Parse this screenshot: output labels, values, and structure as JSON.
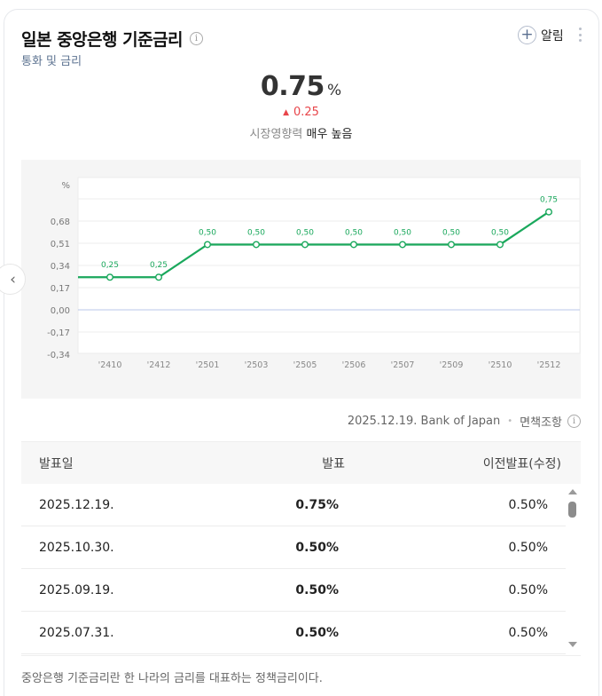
{
  "header": {
    "title": "일본 중앙은행 기준금리",
    "subtitle": "통화 및 금리",
    "alarm_label": "알림"
  },
  "summary": {
    "value": "0.75",
    "unit": "%",
    "change": "0.25",
    "change_direction": "up",
    "impact_label": "시장영향력",
    "impact_value": "매우 높음"
  },
  "source": {
    "date": "2025.12.19.",
    "provider": "Bank of Japan",
    "disclaimer": "면책조항"
  },
  "table": {
    "headers": [
      "발표일",
      "발표",
      "이전발표(수정)"
    ],
    "rows": [
      {
        "date": "2025.12.19.",
        "actual": "0.75%",
        "previous": "0.50%"
      },
      {
        "date": "2025.10.30.",
        "actual": "0.50%",
        "previous": "0.50%"
      },
      {
        "date": "2025.09.19.",
        "actual": "0.50%",
        "previous": "0.50%"
      },
      {
        "date": "2025.07.31.",
        "actual": "0.50%",
        "previous": "0.50%"
      }
    ]
  },
  "footnote": "중앙은행 기준금리란 한 나라의 금리를 대표하는 정책금리이다.",
  "colors": {
    "line": "#1aa85c",
    "change_up": "#e8454a",
    "zero_line": "#b9c7e8"
  },
  "chart_data": {
    "type": "line",
    "title": "",
    "xlabel": "",
    "ylabel": "%",
    "categories": [
      "'24.10",
      "'24.12",
      "'25.01",
      "'25.03",
      "'25.05",
      "'25.06",
      "'25.07",
      "'25.09",
      "'25.10",
      "'25.12"
    ],
    "x_tick_labels": [
      "'2410",
      "'2412",
      "'2501",
      "'2503",
      "'2505",
      "'2506",
      "'2507",
      "'2509",
      "'2510",
      "'2512"
    ],
    "series": [
      {
        "name": "기준금리",
        "values": [
          0.25,
          0.25,
          0.5,
          0.5,
          0.5,
          0.5,
          0.5,
          0.5,
          0.5,
          0.75
        ]
      }
    ],
    "data_labels": [
      "0,25",
      "0,25",
      "0,50",
      "0,50",
      "0,50",
      "0,50",
      "0,50",
      "0,50",
      "0,50",
      "0,75"
    ],
    "y_ticks": [
      "0,68",
      "0,51",
      "0,34",
      "0,17",
      "0,00",
      "-0,17",
      "-0,34"
    ],
    "ylim": [
      -0.34,
      0.85
    ],
    "grid": true,
    "legend": "none"
  }
}
